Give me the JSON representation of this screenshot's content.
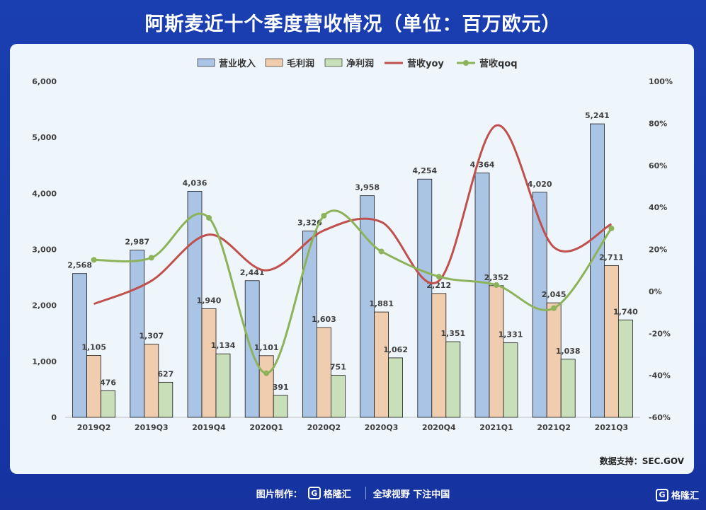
{
  "header": {
    "title": "阿斯麦近十个季度营收情况（单位：百万欧元）"
  },
  "chart_data": {
    "type": "bar",
    "categories": [
      "2019Q2",
      "2019Q3",
      "2019Q4",
      "2020Q1",
      "2020Q2",
      "2020Q3",
      "2020Q4",
      "2021Q1",
      "2021Q2",
      "2021Q3"
    ],
    "series": [
      {
        "name": "营业收入",
        "type": "bar",
        "axis": "left",
        "color": "#a9c4e4",
        "values": [
          2568,
          2987,
          4036,
          2441,
          3326,
          3958,
          4254,
          4364,
          4020,
          5241
        ]
      },
      {
        "name": "毛利润",
        "type": "bar",
        "axis": "left",
        "color": "#f1cdb0",
        "values": [
          1105,
          1307,
          1940,
          1101,
          1603,
          1881,
          2212,
          2352,
          2045,
          2711
        ]
      },
      {
        "name": "净利润",
        "type": "bar",
        "axis": "left",
        "color": "#c9dfb9",
        "values": [
          476,
          627,
          1134,
          391,
          751,
          1062,
          1351,
          1331,
          1038,
          1740
        ]
      },
      {
        "name": "营收yoy",
        "type": "line",
        "axis": "right",
        "color": "#c0504d",
        "values": [
          -0.06,
          0.05,
          0.27,
          0.1,
          0.29,
          0.33,
          0.05,
          0.79,
          0.21,
          0.32
        ]
      },
      {
        "name": "营收qoq",
        "type": "line",
        "axis": "right",
        "color": "#8db35a",
        "values": [
          0.15,
          0.16,
          0.35,
          -0.39,
          0.36,
          0.19,
          0.07,
          0.03,
          -0.08,
          0.3
        ]
      }
    ],
    "y_left": {
      "min": 0,
      "max": 6000,
      "ticks": [
        "0",
        "1,000",
        "2,000",
        "3,000",
        "4,000",
        "5,000",
        "6,000"
      ]
    },
    "y_right": {
      "min": -0.6,
      "max": 1.0,
      "ticks": [
        "-60%",
        "-40%",
        "-20%",
        "0%",
        "20%",
        "40%",
        "60%",
        "80%",
        "100%"
      ]
    },
    "bar_labels": {
      "营业收入": [
        "2,568",
        "2,987",
        "4,036",
        "2,441",
        "3,326",
        "3,958",
        "4,254",
        "4,364",
        "4,020",
        "5,241"
      ],
      "毛利润": [
        "1,105",
        "1,307",
        "1,940",
        "1,101",
        "1,603",
        "1,881",
        "2,212",
        "2,352",
        "2,045",
        "2,711"
      ],
      "净利润": [
        "476",
        "627",
        "1,134",
        "391",
        "751",
        "1,062",
        "1,351",
        "1,331",
        "1,038",
        "1,740"
      ]
    },
    "legend_position": "top-center",
    "grid": false
  },
  "source": "数据支持：SEC.GOV",
  "footer": {
    "made_by": "图片制作：",
    "brand": "格隆汇",
    "slogan": "全球视野 下注中国",
    "corner_brand": "格隆汇"
  }
}
